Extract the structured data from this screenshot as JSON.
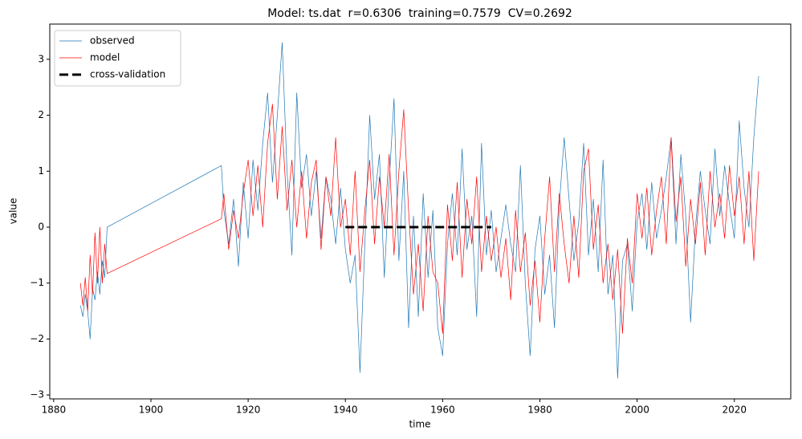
{
  "chart_data": {
    "type": "line",
    "title": "Model: ts.dat  r=0.6306  training=0.7579  CV=0.2692",
    "xlabel": "time",
    "ylabel": "value",
    "xlim": [
      1879.2,
      2031.6
    ],
    "ylim": [
      -3.07,
      3.63
    ],
    "xticks": [
      1880,
      1900,
      1920,
      1940,
      1960,
      1980,
      2000,
      2020
    ],
    "yticks": [
      {
        "value": -3,
        "label": "−3"
      },
      {
        "value": -2,
        "label": "−2"
      },
      {
        "value": -1,
        "label": "−1"
      },
      0,
      1,
      2,
      3
    ],
    "legend": "upper left",
    "x": [
      1885.5,
      1886,
      1886.5,
      1887,
      1887.5,
      1888,
      1888.5,
      1889,
      1889.5,
      1890,
      1890.5,
      1891,
      1914.5,
      1915,
      1916,
      1917,
      1918,
      1919,
      1920,
      1921,
      1922,
      1923,
      1924,
      1925,
      1926,
      1927,
      1928,
      1929,
      1930,
      1931,
      1932,
      1933,
      1934,
      1935,
      1936,
      1937,
      1938,
      1939,
      1940,
      1941,
      1942,
      1943,
      1944,
      1945,
      1946,
      1947,
      1948,
      1949,
      1950,
      1951,
      1952,
      1953,
      1954,
      1955,
      1956,
      1957,
      1958,
      1959,
      1960,
      1961,
      1962,
      1963,
      1964,
      1965,
      1966,
      1967,
      1968,
      1969,
      1970,
      1971,
      1972,
      1973,
      1974,
      1975,
      1976,
      1977,
      1978,
      1979,
      1980,
      1981,
      1982,
      1983,
      1984,
      1985,
      1986,
      1987,
      1988,
      1989,
      1990,
      1991,
      1992,
      1993,
      1994,
      1995,
      1996,
      1997,
      1998,
      1999,
      2000,
      2001,
      2002,
      2003,
      2004,
      2005,
      2006,
      2007,
      2008,
      2009,
      2010,
      2011,
      2012,
      2013,
      2014,
      2015,
      2016,
      2017,
      2018,
      2019,
      2020,
      2021,
      2022,
      2023,
      2024,
      2025
    ],
    "series": [
      {
        "name": "observed",
        "color": "#1f77b4",
        "width": 0.7,
        "dashed": false,
        "values": [
          -1.4,
          -1.6,
          -1.2,
          -1.5,
          -2.0,
          -1.1,
          -1.3,
          -0.8,
          -1.2,
          -0.6,
          -0.9,
          0.0,
          1.1,
          0.3,
          -0.3,
          0.5,
          -0.7,
          0.8,
          -0.2,
          1.2,
          0.3,
          1.5,
          2.4,
          0.8,
          2.0,
          3.3,
          1.0,
          -0.5,
          2.4,
          0.7,
          1.3,
          0.2,
          1.0,
          -0.2,
          0.9,
          0.5,
          -0.3,
          0.7,
          -0.4,
          -1.0,
          -0.5,
          -2.6,
          -0.3,
          2.0,
          0.5,
          1.3,
          -0.9,
          0.8,
          2.3,
          -0.6,
          1.0,
          -1.8,
          0.2,
          -1.6,
          0.6,
          -0.9,
          0.3,
          -1.8,
          -2.3,
          -0.3,
          0.6,
          -0.5,
          1.4,
          -0.4,
          0.2,
          -1.6,
          1.5,
          -0.5,
          0.3,
          -0.8,
          -0.2,
          0.4,
          -0.3,
          -0.8,
          1.1,
          -1.0,
          -2.3,
          -0.4,
          0.2,
          -1.2,
          -0.5,
          -1.8,
          0.4,
          1.6,
          0.5,
          -0.6,
          0.1,
          1.5,
          -0.5,
          0.5,
          -0.8,
          1.2,
          -1.2,
          -0.5,
          -2.7,
          -0.6,
          -0.3,
          -1.5,
          0.1,
          0.6,
          -0.4,
          0.8,
          -0.2,
          0.3,
          0.9,
          1.6,
          -0.3,
          1.3,
          0.2,
          -1.7,
          0.0,
          1.0,
          0.3,
          -0.3,
          1.4,
          0.2,
          1.1,
          0.4,
          -0.2,
          1.9,
          0.7,
          0.0,
          1.6,
          2.7
        ]
      },
      {
        "name": "model",
        "color": "#ff0000",
        "width": 0.7,
        "dashed": false,
        "values": [
          -1.0,
          -1.4,
          -0.9,
          -1.5,
          -0.5,
          -1.2,
          -0.1,
          -1.0,
          0.0,
          -1.0,
          -0.3,
          -0.83,
          0.15,
          0.6,
          -0.4,
          0.3,
          -0.2,
          0.6,
          1.2,
          0.2,
          1.1,
          0.0,
          1.5,
          2.2,
          0.5,
          1.8,
          0.3,
          1.2,
          0.0,
          1.0,
          -0.2,
          0.8,
          1.2,
          -0.4,
          0.9,
          0.2,
          1.6,
          0.0,
          0.5,
          -0.5,
          1.0,
          -0.8,
          0.3,
          1.2,
          -0.3,
          0.9,
          0.0,
          1.3,
          -0.5,
          1.0,
          2.1,
          0.3,
          -1.2,
          -0.3,
          -1.5,
          0.2,
          -0.8,
          -1.0,
          -1.9,
          0.4,
          -0.6,
          0.8,
          -0.9,
          0.5,
          -0.3,
          0.9,
          -0.8,
          0.2,
          -0.6,
          0.0,
          -0.9,
          -0.2,
          -1.3,
          0.3,
          -0.8,
          -0.1,
          -1.4,
          -0.6,
          -1.7,
          -0.2,
          0.9,
          -0.8,
          0.6,
          -0.3,
          -1.0,
          0.2,
          -0.9,
          1.0,
          1.4,
          -0.4,
          0.4,
          -1.0,
          -0.3,
          -1.3,
          -0.4,
          -1.9,
          -0.2,
          -1.0,
          0.6,
          -0.2,
          0.7,
          -0.5,
          0.3,
          0.9,
          -0.3,
          1.6,
          0.1,
          0.9,
          -0.7,
          0.5,
          -0.3,
          0.8,
          -0.5,
          1.0,
          0.0,
          0.6,
          -0.2,
          1.1,
          0.2,
          0.9,
          -0.3,
          1.0,
          -0.6,
          1.0
        ]
      },
      {
        "name": "cross-validation",
        "color": "#000000",
        "width": 3,
        "dashed": true,
        "x": [
          1940,
          1970
        ],
        "values": [
          0,
          0
        ]
      }
    ]
  }
}
